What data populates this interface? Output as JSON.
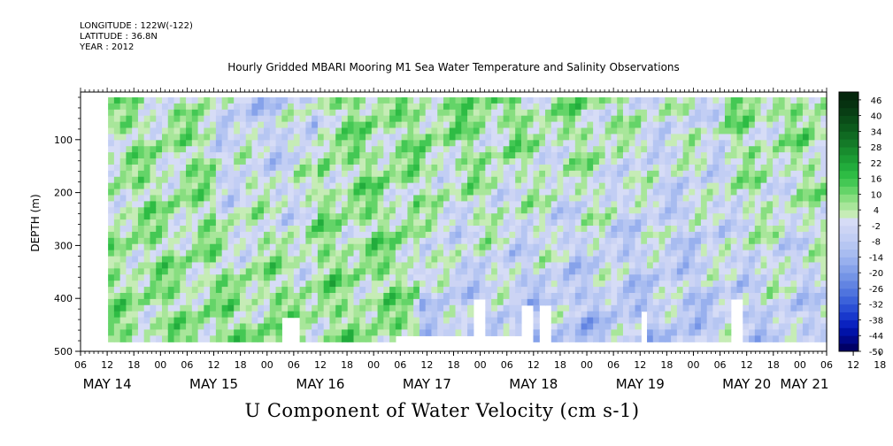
{
  "meta": {
    "longitude": "LONGITUDE : 122W(-122)",
    "latitude": "LATITUDE : 36.8N",
    "year": "YEAR : 2012"
  },
  "chart_data": {
    "type": "heatmap",
    "title": "Hourly Gridded MBARI Mooring M1 Sea Water Temperature and Salinity Observations",
    "xlabel": "",
    "ylabel": "DEPTH (m)",
    "footer": "U Component of Water Velocity (cm s-1)",
    "x_hour_ticks": [
      "06",
      "12",
      "18",
      "00",
      "06",
      "12",
      "18",
      "00",
      "06",
      "12",
      "18",
      "00",
      "06",
      "12",
      "18",
      "00",
      "06",
      "12",
      "18",
      "00",
      "06",
      "12",
      "18",
      "00",
      "06",
      "12",
      "18",
      "00",
      "06",
      "12",
      "18",
      "00"
    ],
    "x_day_labels": [
      "MAY 14",
      "MAY 15",
      "MAY 16",
      "MAY 17",
      "MAY 18",
      "MAY 19",
      "MAY 20",
      "MAY 21"
    ],
    "y_ticks": [
      100,
      200,
      300,
      400,
      500
    ],
    "y_range": [
      10,
      500
    ],
    "y_reversed": true,
    "colorbar_labels": [
      "46",
      "40",
      "34",
      "28",
      "22",
      "16",
      "10",
      "4",
      "-2",
      "-8",
      "-14",
      "-20",
      "-26",
      "-32",
      "-38",
      "-44",
      "-50"
    ],
    "colorbar_levels": [
      -50,
      -47,
      -44,
      -41,
      -38,
      -35,
      -32,
      -29,
      -26,
      -23,
      -20,
      -17,
      -14,
      -11,
      -8,
      -5,
      -2,
      1,
      4,
      7,
      10,
      13,
      16,
      19,
      22,
      25,
      28,
      31,
      34,
      37,
      40,
      43,
      46,
      49
    ],
    "colorbar_colors": [
      "#000066",
      "#00088a",
      "#0012a8",
      "#0a22c0",
      "#1838cc",
      "#2a4ed4",
      "#3c62da",
      "#4f74de",
      "#6284e2",
      "#7494e6",
      "#86a2ea",
      "#98b0ee",
      "#a8bcf0",
      "#b6c6f2",
      "#c2cef4",
      "#ccd4f4",
      "#d6dcf6",
      "#c6ecb6",
      "#a8e69a",
      "#88de80",
      "#64d468",
      "#44c854",
      "#2ebc44",
      "#22ac3c",
      "#1c9c34",
      "#188c2e",
      "#147a28",
      "#106a22",
      "#0c5a1c",
      "#0a4c18",
      "#083e14",
      "#063210",
      "#04260c"
    ],
    "day_hour_start": "2012-05-14T00:00",
    "x_range_hours": [
      6,
      174
    ],
    "data_start_hour": 12.2,
    "series_summary": [
      {
        "day": "MAY 14",
        "upper_mean_cm_s": 4,
        "lower_mean_cm_s": 6
      },
      {
        "day": "MAY 15",
        "upper_mean_cm_s": -6,
        "lower_mean_cm_s": 8
      },
      {
        "day": "MAY 16",
        "upper_mean_cm_s": 6,
        "lower_mean_cm_s": 6
      },
      {
        "day": "MAY 17",
        "upper_mean_cm_s": 8,
        "lower_mean_cm_s": -8
      },
      {
        "day": "MAY 18",
        "upper_mean_cm_s": 6,
        "lower_mean_cm_s": -10
      },
      {
        "day": "MAY 19",
        "upper_mean_cm_s": 0,
        "lower_mean_cm_s": -8
      },
      {
        "day": "MAY 20",
        "upper_mean_cm_s": 6,
        "lower_mean_cm_s": -6
      }
    ]
  }
}
